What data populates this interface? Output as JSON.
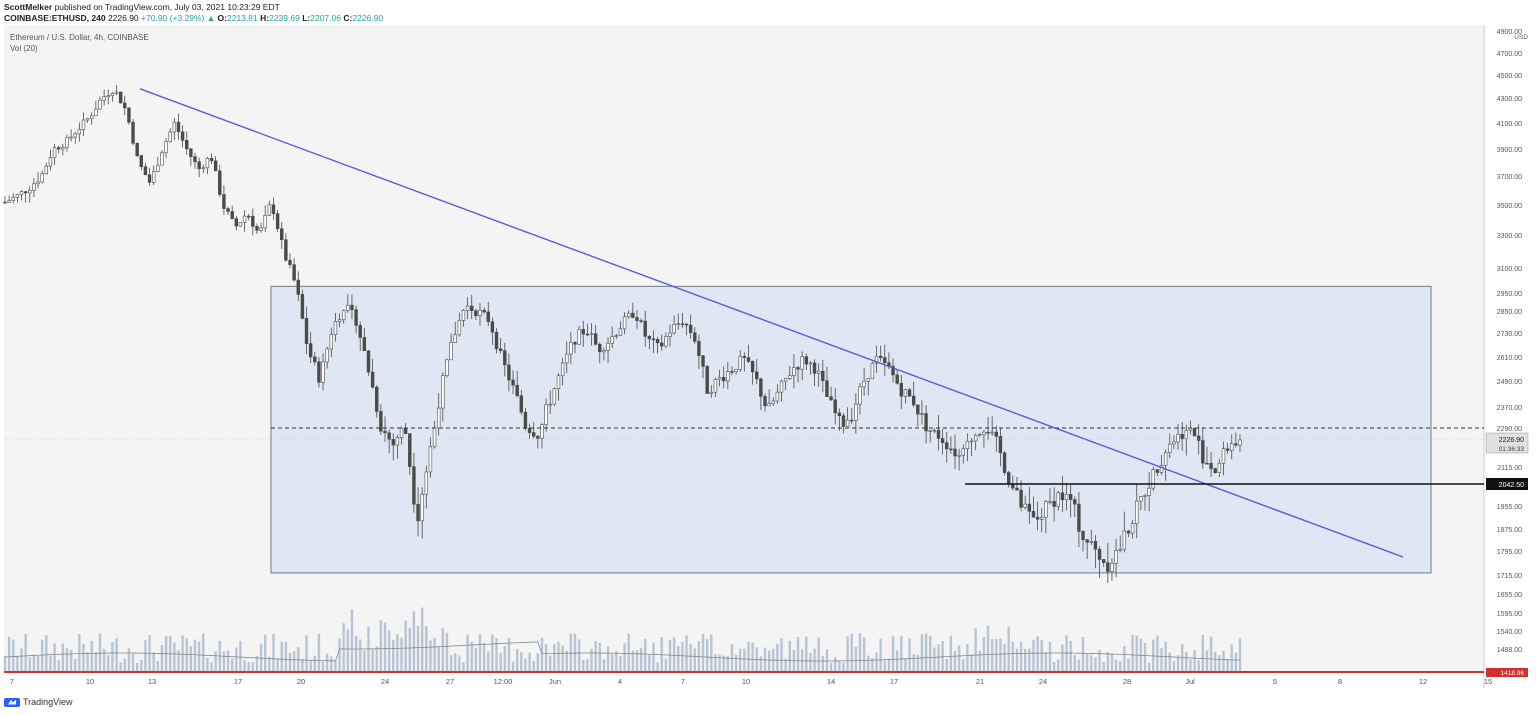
{
  "header": {
    "author": "ScottMelker",
    "published": "published on TradingView.com, July 03, 2021 10:23:29 EDT",
    "symbol": "COINBASE:ETHUSD, 240",
    "last": "2226.90",
    "change": "+70.90 (+3.29%)",
    "o_label": "O:",
    "o": "2213.81",
    "h_label": "H:",
    "h": "2239.69",
    "l_label": "L:",
    "l": "2207.06",
    "c_label": "C:",
    "c": "2226.90"
  },
  "legend": {
    "title": "Ethereum / U.S. Dollar, 4h, COINBASE",
    "volume": "Vol (20)"
  },
  "footer": {
    "brand": "TradingView"
  },
  "colors": {
    "background": "#f4f4f4",
    "range_box": "#dfe7f4",
    "trendline": "#5b5bd6",
    "candle": "#4a4a4a",
    "volume": "#b8c4d4",
    "zero_line": "#d32f2f"
  },
  "chart_data": {
    "type": "candlestick",
    "currency": "USD",
    "y_axis_ticks": [
      1418.96,
      1488.0,
      1540.0,
      1595.0,
      1655.0,
      1715.0,
      1795.0,
      1875.0,
      1955.0,
      2042.5,
      2115.0,
      2226.9,
      2290.0,
      2370.0,
      2490.0,
      2610.0,
      2730.0,
      2850.0,
      2950.0,
      3100.0,
      3300.0,
      3500.0,
      3700.0,
      3900.0,
      4100.0,
      4300.0,
      4500.0,
      4700.0,
      4900.0
    ],
    "y_axis_labels": [
      "1418.96",
      "1488.00",
      "1540.00",
      "1595.00",
      "1655.00",
      "1715.00",
      "1795.00",
      "1875.00",
      "1955.00",
      "2115.00",
      "2290.00",
      "2370.00",
      "2490.00",
      "2610.00",
      "2730.00",
      "2850.00",
      "2950.00",
      "3100.00",
      "3300.00",
      "3500.00",
      "3700.00",
      "3900.00",
      "4100.00",
      "4300.00",
      "4500.00",
      "4700.00",
      "4900.00"
    ],
    "x_ticks": [
      "7",
      "10",
      "13",
      "17",
      "20",
      "24",
      "27",
      "12:00",
      "Jun",
      "4",
      "7",
      "10",
      "14",
      "17",
      "21",
      "24",
      "28",
      "Jul",
      "5",
      "8",
      "12",
      "15"
    ],
    "last_price": "2226.90",
    "countdown": "01:36:33",
    "level_label": "2042.50",
    "level": 2042.5,
    "dashed_level": 2290,
    "range_box": {
      "top": 2990,
      "bottom": 1722
    },
    "trendline": {
      "start": 4380,
      "end": 1775
    },
    "price_path": [
      [
        3520,
        3560,
        3620,
        3700,
        3900,
        3950,
        4050,
        4150,
        4300,
        4380
      ],
      [
        4200,
        3800,
        3650,
        3900,
        4100,
        3900,
        3750,
        3850,
        3500,
        3350,
        3450,
        3300,
        3520,
        3200
      ],
      [
        3000,
        2650,
        2500,
        2750,
        2880,
        2800,
        2550,
        2300,
        2200,
        2300,
        1900,
        2150,
        2450,
        2700,
        2880,
        2850,
        2800,
        2600,
        2450,
        2300,
        2250,
        2400,
        2550,
        2700,
        2750,
        2650,
        2700,
        2780,
        2850,
        2700,
        2650,
        2750,
        2800,
        2700,
        2450,
        2500,
        2550,
        2600,
        2500,
        2350,
        2450,
        2550,
        2600,
        2550,
        2400,
        2300,
        2350,
        2500,
        2600,
        2550,
        2450,
        2400,
        2300,
        2250,
        2200,
        2150,
        2250,
        2300,
        2200,
        2050,
        1950,
        1900,
        1950,
        2000,
        1980,
        1850,
        1800,
        1750,
        1800,
        1900,
        2000,
        2100,
        2200,
        2250,
        2280,
        2150,
        2100,
        2200,
        2227
      ]
    ]
  }
}
